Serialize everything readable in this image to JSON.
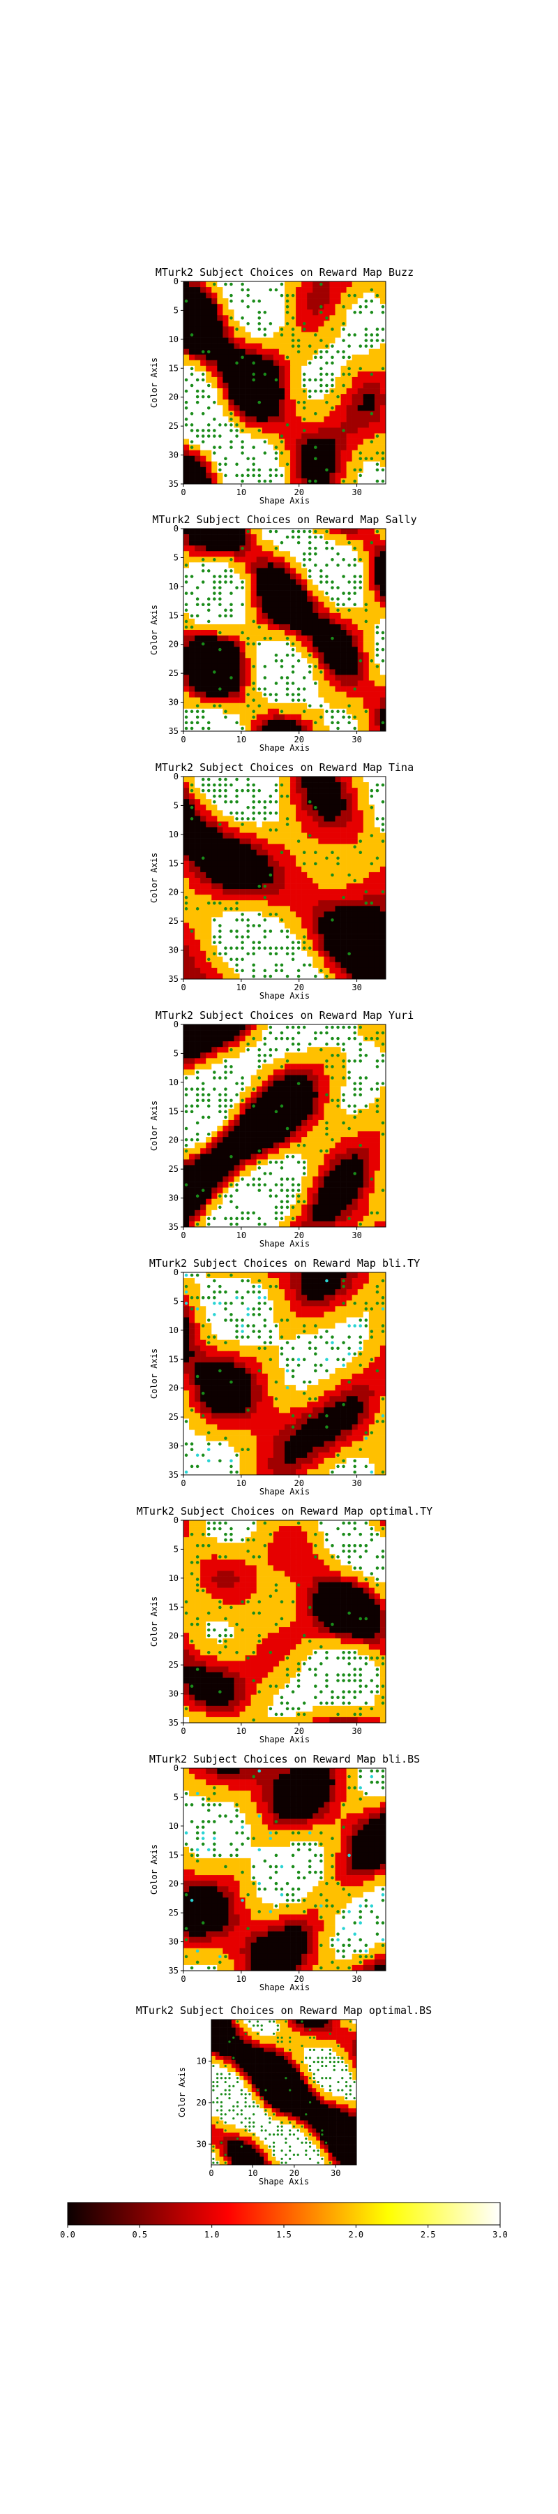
{
  "chart_data": [
    {
      "type": "heatmap",
      "map": "Buzz",
      "title": "MTurk2 Subject Choices on Reward Map Buzz",
      "xlabel": "Shape Axis",
      "ylabel": "Color Axis",
      "xlim": [
        0,
        35
      ],
      "ylim": [
        35,
        0
      ],
      "xticks": [
        "0",
        "10",
        "20",
        "30"
      ],
      "yticks": [
        "0",
        "5",
        "10",
        "15",
        "20",
        "25",
        "30",
        "35"
      ],
      "markers": [
        "green"
      ]
    },
    {
      "type": "heatmap",
      "map": "Sally",
      "title": "MTurk2 Subject Choices on Reward Map Sally",
      "xlabel": "Shape Axis",
      "ylabel": "Color Axis",
      "xlim": [
        0,
        35
      ],
      "ylim": [
        35,
        0
      ],
      "xticks": [
        "0",
        "10",
        "20",
        "30"
      ],
      "yticks": [
        "0",
        "5",
        "10",
        "15",
        "20",
        "25",
        "30",
        "35"
      ],
      "markers": [
        "green"
      ]
    },
    {
      "type": "heatmap",
      "map": "Tina",
      "title": "MTurk2 Subject Choices on Reward Map Tina",
      "xlabel": "Shape Axis",
      "ylabel": "Color Axis",
      "xlim": [
        0,
        35
      ],
      "ylim": [
        35,
        0
      ],
      "xticks": [
        "0",
        "10",
        "20",
        "30"
      ],
      "yticks": [
        "0",
        "5",
        "10",
        "15",
        "20",
        "25",
        "30",
        "35"
      ],
      "markers": [
        "green"
      ]
    },
    {
      "type": "heatmap",
      "map": "Yuri",
      "title": "MTurk2 Subject Choices on Reward Map Yuri",
      "xlabel": "Shape Axis",
      "ylabel": "Color Axis",
      "xlim": [
        0,
        35
      ],
      "ylim": [
        35,
        0
      ],
      "xticks": [
        "0",
        "10",
        "20",
        "30"
      ],
      "yticks": [
        "0",
        "5",
        "10",
        "15",
        "20",
        "25",
        "30",
        "35"
      ],
      "markers": [
        "green"
      ]
    },
    {
      "type": "heatmap",
      "map": "bli.TY",
      "title": "MTurk2 Subject Choices on Reward Map bli.TY",
      "xlabel": "Shape Axis",
      "ylabel": "Color Axis",
      "xlim": [
        0,
        35
      ],
      "ylim": [
        35,
        0
      ],
      "xticks": [
        "0",
        "10",
        "20",
        "30"
      ],
      "yticks": [
        "0",
        "5",
        "10",
        "15",
        "20",
        "25",
        "30",
        "35"
      ],
      "markers": [
        "green",
        "cyan"
      ]
    },
    {
      "type": "heatmap",
      "map": "optimal.TY",
      "title": "MTurk2 Subject Choices on Reward Map optimal.TY",
      "xlabel": "Shape Axis",
      "ylabel": "Color Axis",
      "xlim": [
        0,
        35
      ],
      "ylim": [
        35,
        0
      ],
      "xticks": [
        "0",
        "10",
        "20",
        "30"
      ],
      "yticks": [
        "0",
        "5",
        "10",
        "15",
        "20",
        "25",
        "30",
        "35"
      ],
      "markers": [
        "green"
      ]
    },
    {
      "type": "heatmap",
      "map": "bli.BS",
      "title": "MTurk2 Subject Choices on Reward Map bli.BS",
      "xlabel": "Shape Axis",
      "ylabel": "Color Axis",
      "xlim": [
        0,
        35
      ],
      "ylim": [
        35,
        0
      ],
      "xticks": [
        "0",
        "10",
        "20",
        "30"
      ],
      "yticks": [
        "0",
        "5",
        "10",
        "15",
        "20",
        "25",
        "30",
        "35"
      ],
      "markers": [
        "green",
        "cyan"
      ]
    },
    {
      "type": "heatmap",
      "map": "optimal.BS",
      "title": "MTurk2 Subject Choices on Reward Map optimal.BS",
      "xlabel": "Shape Axis",
      "ylabel": "Color Axis",
      "xlim": [
        0,
        35
      ],
      "ylim": [
        35,
        0
      ],
      "xticks": [
        "0",
        "10",
        "20",
        "30"
      ],
      "yticks": [
        "10",
        "20",
        "30"
      ],
      "markers": [
        "green"
      ]
    }
  ],
  "colorbar": {
    "colormap": "hot",
    "range": [
      0.0,
      3.0
    ],
    "ticks": [
      "0.0",
      "0.5",
      "1.0",
      "1.5",
      "2.0",
      "2.5",
      "3.0"
    ],
    "orientation": "horizontal"
  },
  "colors": {
    "black": "#0d0000",
    "dark_red": "#a00000",
    "red": "#e60000",
    "orange": "#ffc000",
    "white": "#ffffff",
    "marker_green": "#1a8c1a",
    "marker_cyan": "#2ad4d4"
  }
}
